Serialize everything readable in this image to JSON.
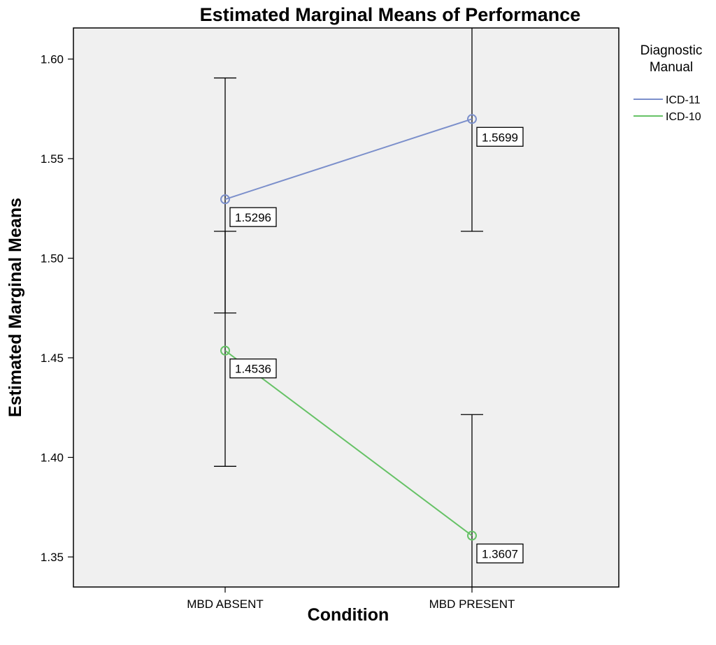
{
  "chart_data": {
    "type": "line",
    "title": "Estimated Marginal Means of Performance",
    "xlabel": "Condition",
    "ylabel": "Estimated Marginal Means",
    "categories": [
      "MBD ABSENT",
      "MBD PRESENT"
    ],
    "ylim": [
      1.33,
      1.615
    ],
    "yticks": [
      "1.35",
      "1.40",
      "1.45",
      "1.50",
      "1.55",
      "1.60"
    ],
    "legend": {
      "title_line1": "Diagnostic",
      "title_line2": "Manual",
      "placement": "right"
    },
    "series": [
      {
        "name": "ICD-11",
        "color": "#7b8fcb",
        "values": [
          1.5296,
          1.5699
        ],
        "labels": [
          "1.5296",
          "1.5699"
        ],
        "error_low": [
          1.4725,
          1.5135
        ],
        "error_high": [
          1.5905,
          1.63
        ]
      },
      {
        "name": "ICD-10",
        "color": "#66c266",
        "values": [
          1.4536,
          1.3607
        ],
        "labels": [
          "1.4536",
          "1.3607"
        ],
        "error_low": [
          1.3955,
          1.303
        ],
        "error_high": [
          1.5135,
          1.4215
        ]
      }
    ],
    "grid": false,
    "plot_background": "#f0f0f0"
  }
}
